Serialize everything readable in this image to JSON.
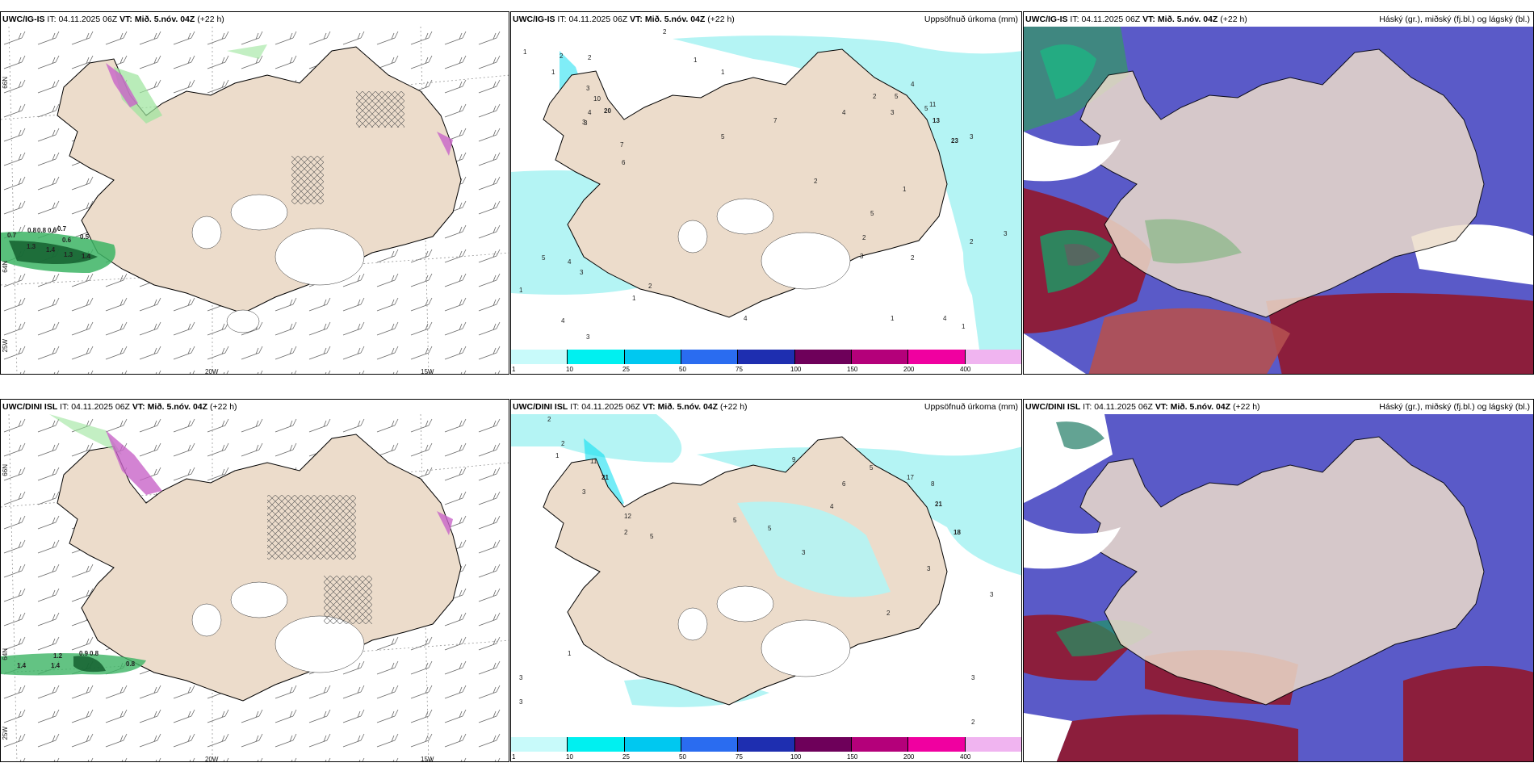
{
  "panels": {
    "top": {
      "model_label": "UWC/IG-IS",
      "it_label": "IT:",
      "it_value": "04.11.2025 06Z",
      "vt_label": "VT:",
      "vt_value": "Mið. 5.nóv. 04Z",
      "lead": "(+22 h)"
    },
    "bottom": {
      "model_label": "UWC/DINI ISL",
      "it_label": "IT:",
      "it_value": "04.11.2025 06Z",
      "vt_label": "VT:",
      "vt_value": "Mið. 5.nóv. 04Z",
      "lead": "(+22 h)"
    }
  },
  "precip_title": "Uppsöfnuð úrkoma (mm)",
  "cloud_title": "Háský (gr.), miðský (fj.bl.) og lágský (bl.)",
  "axis_labels": {
    "lon_20w": "20W",
    "lon_15w": "15W",
    "lat_66n": "66N",
    "lat_64n": "64N",
    "lon_25w": "25W"
  },
  "precip_scale": {
    "ticks": [
      "1",
      "10",
      "25",
      "50",
      "75",
      "100",
      "150",
      "200",
      "400"
    ],
    "colors": [
      "#c8fafa",
      "#00f0f0",
      "#00c8f0",
      "#2a6cf0",
      "#1e2eb0",
      "#6e005a",
      "#b4007a",
      "#f000a0",
      "#f0b4f0"
    ]
  },
  "top_wind_values": [
    "0.7",
    "0.8",
    "0.8",
    "0.6",
    "0.7",
    "0.6",
    "0.5",
    "1.3",
    "1.4",
    "1.3",
    "1.4"
  ],
  "bottom_wind_values": [
    "1.2",
    "0.9",
    "0.8",
    "1.4",
    "1.4",
    "0.8"
  ],
  "top_precip_values": [
    "1",
    "2",
    "2",
    "2",
    "1",
    "1",
    "3",
    "1",
    "20",
    "4",
    "3",
    "10",
    "7",
    "6",
    "3",
    "5",
    "7",
    "4",
    "2",
    "3",
    "5",
    "13",
    "23",
    "3",
    "11",
    "4",
    "5",
    "5",
    "1",
    "2",
    "2",
    "3",
    "2",
    "2",
    "4",
    "3",
    "1",
    "4",
    "4",
    "1",
    "2",
    "5",
    "3",
    "4",
    "1",
    "1",
    "3"
  ],
  "bottom_precip_values": [
    "2",
    "2",
    "1",
    "11",
    "21",
    "3",
    "12",
    "5",
    "2",
    "9",
    "17",
    "8",
    "6",
    "5",
    "4",
    "21",
    "18",
    "5",
    "5",
    "3",
    "3",
    "2",
    "3",
    "3",
    "1",
    "3",
    "3",
    "2"
  ],
  "colors": {
    "land": "#ecdccb",
    "precip_light": "#b4f4f4",
    "cloud_high": "#5a5ac8",
    "cloud_mid": "#8c1e3c",
    "cloud_low_green": "#1e9664",
    "wind_green": "#9be49b"
  }
}
